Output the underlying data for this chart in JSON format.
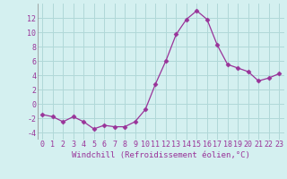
{
  "x": [
    0,
    1,
    2,
    3,
    4,
    5,
    6,
    7,
    8,
    9,
    10,
    11,
    12,
    13,
    14,
    15,
    16,
    17,
    18,
    19,
    20,
    21,
    22,
    23
  ],
  "y": [
    -1.5,
    -1.8,
    -2.5,
    -1.8,
    -2.5,
    -3.5,
    -3.0,
    -3.2,
    -3.2,
    -2.5,
    -0.8,
    2.8,
    6.0,
    9.7,
    11.8,
    13.0,
    11.8,
    8.2,
    5.5,
    5.0,
    4.5,
    3.2,
    3.6,
    4.2
  ],
  "line_color": "#993399",
  "marker": "D",
  "marker_size": 2.5,
  "bg_color": "#d4f0f0",
  "grid_color": "#b0d8d8",
  "tick_label_color": "#993399",
  "xlabel": "Windchill (Refroidissement éolien,°C)",
  "xlabel_color": "#993399",
  "xlabel_fontsize": 6.5,
  "tick_fontsize": 6.0,
  "ylim": [
    -5,
    14
  ],
  "yticks": [
    -4,
    -2,
    0,
    2,
    4,
    6,
    8,
    10,
    12
  ],
  "title": ""
}
